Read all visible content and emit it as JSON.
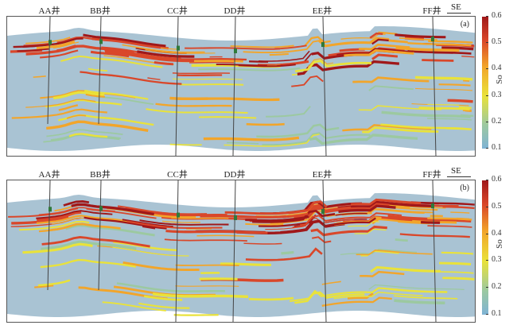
{
  "wells": [
    {
      "name": "AA井",
      "x": 62
    },
    {
      "name": "BB井",
      "x": 126
    },
    {
      "name": "CC井",
      "x": 223
    },
    {
      "name": "DD井",
      "x": 295
    },
    {
      "name": "EE井",
      "x": 405
    },
    {
      "name": "FF井",
      "x": 543
    }
  ],
  "direction": "SE",
  "panels": [
    {
      "tag": "(a)"
    },
    {
      "tag": "(b)"
    }
  ],
  "colorbar": {
    "label": "So",
    "ticks": [
      "0.6",
      "0.5",
      "0.4",
      "0.3",
      "0.2",
      "0.1"
    ],
    "min": 0.1,
    "max": 0.6,
    "colors": [
      "#7fb3d5",
      "#9cc9a0",
      "#e9e23a",
      "#f2a52a",
      "#d9472a",
      "#a0181a"
    ]
  },
  "background_color": "#a9c3d3"
}
